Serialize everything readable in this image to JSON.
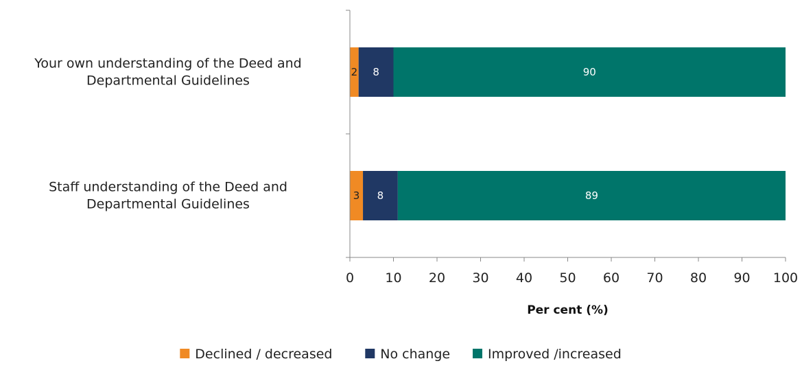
{
  "chart_data": {
    "type": "bar",
    "orientation": "horizontal",
    "stacked": true,
    "title": "",
    "xlabel": "Per cent (%)",
    "ylabel": "",
    "xlim": [
      0,
      100
    ],
    "x_ticks": [
      0,
      10,
      20,
      30,
      40,
      50,
      60,
      70,
      80,
      90,
      100
    ],
    "grid": false,
    "legend_position": "bottom",
    "categories": [
      [
        "Your own understanding of the Deed and",
        "Departmental Guidelines"
      ],
      [
        "Staff understanding of the Deed and",
        "Departmental Guidelines"
      ]
    ],
    "series": [
      {
        "name": "Declined / decreased",
        "color": "#f08a24",
        "label_color": "#222222",
        "values": [
          2,
          3
        ]
      },
      {
        "name": "No change",
        "color": "#203864",
        "label_color": "#ffffff",
        "values": [
          8,
          8
        ]
      },
      {
        "name": "Improved /increased",
        "color": "#00756a",
        "label_color": "#ffffff",
        "values": [
          90,
          89
        ]
      }
    ]
  }
}
